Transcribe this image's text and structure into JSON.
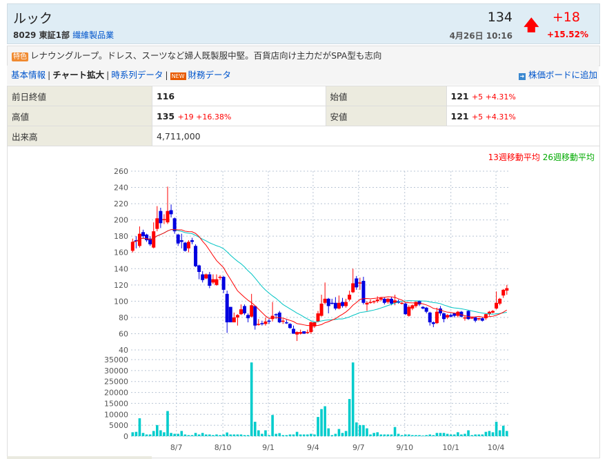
{
  "header": {
    "name": "ルック",
    "code": "8029",
    "market": "東証1部",
    "sector": "繊維製品業",
    "price": "134",
    "datetime": "4月26日 10:16",
    "change": "+18",
    "change_pct": "+15.52%",
    "arrow_icon": "arrow-up-icon"
  },
  "description": {
    "badge": "特色",
    "text": "レナウングループ。ドレス、スーツなど婦人既製服中堅。百貨店向け主力だがSPA型も志向"
  },
  "links": {
    "items": [
      "基本情報",
      "チャート拡大",
      "時系列データ"
    ],
    "new_badge": "NEW",
    "finance": "財務データ",
    "add_board": "株価ボードに追加"
  },
  "quote": {
    "prev_close_label": "前日終値",
    "prev_close": "116",
    "open_label": "始値",
    "open": "121",
    "open_chg": "+5 +4.31%",
    "high_label": "高値",
    "high": "135",
    "high_chg": "+19 +16.38%",
    "low_label": "安値",
    "low": "121",
    "low_chg": "+5 +4.31%",
    "volume_label": "出来高",
    "volume": "4,711,000"
  },
  "chart_data": {
    "type": "candlestick",
    "legend": {
      "ma13": "13週移動平均",
      "ma26": "26週移動平均",
      "placement": "top-right"
    },
    "colors": {
      "up": "#ff0000",
      "down": "#0000e0",
      "ma13": "#ff0000",
      "ma26": "#00c4c4",
      "volume": "#00cccc"
    },
    "price_axis": {
      "ylim": [
        40,
        260
      ],
      "ticks": [
        40,
        60,
        80,
        100,
        120,
        140,
        160,
        180,
        200,
        220,
        240,
        260
      ]
    },
    "volume_axis": {
      "ylim": [
        0,
        35000
      ],
      "ticks": [
        0,
        5000,
        10000,
        15000,
        20000,
        25000,
        30000,
        35000
      ]
    },
    "x_ticks": [
      {
        "label": "8/7",
        "at": 12.5
      },
      {
        "label": "8/10",
        "at": 25.8
      },
      {
        "label": "9/1",
        "at": 38.8
      },
      {
        "label": "9/4",
        "at": 51.6
      },
      {
        "label": "9/7",
        "at": 64.6
      },
      {
        "label": "9/10",
        "at": 77.8
      },
      {
        "label": "10/1",
        "at": 91
      },
      {
        "label": "10/4",
        "at": 103.9
      }
    ],
    "grid": true,
    "ohlc": [
      [
        162,
        177,
        160,
        173
      ],
      [
        175,
        180,
        165,
        174
      ],
      [
        168,
        192,
        166,
        183
      ],
      [
        185,
        188,
        177,
        180
      ],
      [
        182,
        183,
        173,
        175
      ],
      [
        177,
        180,
        168,
        170
      ],
      [
        166,
        197,
        165,
        186
      ],
      [
        189,
        217,
        186,
        202
      ],
      [
        211,
        215,
        190,
        196
      ],
      [
        200,
        207,
        195,
        201
      ],
      [
        197,
        241,
        195,
        211
      ],
      [
        212,
        219,
        203,
        207
      ],
      [
        202,
        203,
        183,
        186
      ],
      [
        182,
        183,
        168,
        171
      ],
      [
        175,
        183,
        165,
        173
      ],
      [
        172,
        173,
        161,
        162
      ],
      [
        165,
        175,
        160,
        173
      ],
      [
        175,
        178,
        170,
        173
      ],
      [
        168,
        170,
        142,
        143
      ],
      [
        144,
        145,
        127,
        136
      ],
      [
        133,
        137,
        123,
        126
      ],
      [
        128,
        134,
        127,
        133
      ],
      [
        133,
        136,
        116,
        119
      ],
      [
        123,
        133,
        121,
        127
      ],
      [
        120,
        133,
        119,
        127
      ],
      [
        130,
        132,
        126,
        130
      ],
      [
        130,
        131,
        110,
        114
      ],
      [
        109,
        113,
        61,
        74
      ],
      [
        93,
        93,
        75,
        74
      ],
      [
        74,
        86,
        74,
        80
      ],
      [
        80,
        84,
        70,
        83
      ],
      [
        84,
        96,
        83,
        90
      ],
      [
        94,
        96,
        83,
        85
      ],
      [
        83,
        85,
        74,
        79
      ],
      [
        81,
        109,
        80,
        95
      ],
      [
        94,
        94,
        65,
        70
      ],
      [
        71,
        78,
        70,
        72
      ],
      [
        73,
        76,
        70,
        72
      ],
      [
        72,
        80,
        70,
        75
      ],
      [
        76,
        78,
        72,
        75
      ],
      [
        78,
        99,
        75,
        82
      ],
      [
        84,
        85,
        78,
        83
      ],
      [
        86,
        88,
        73,
        74
      ],
      [
        75,
        78,
        72,
        76
      ],
      [
        74,
        77,
        72,
        73
      ],
      [
        72,
        73,
        66,
        67
      ],
      [
        66,
        70,
        60,
        60
      ],
      [
        59,
        63,
        51,
        62
      ],
      [
        60,
        65,
        59,
        62
      ],
      [
        63,
        63,
        60,
        60
      ],
      [
        61,
        65,
        60,
        62
      ],
      [
        62,
        75,
        60,
        74
      ],
      [
        69,
        75,
        67,
        74
      ],
      [
        75,
        88,
        74,
        85
      ],
      [
        82,
        108,
        81,
        97
      ],
      [
        98,
        123,
        96,
        103
      ],
      [
        103,
        104,
        85,
        94
      ],
      [
        98,
        103,
        96,
        97
      ],
      [
        98,
        105,
        89,
        91
      ],
      [
        91,
        107,
        90,
        98
      ],
      [
        99,
        104,
        92,
        94
      ],
      [
        94,
        103,
        92,
        99
      ],
      [
        102,
        113,
        100,
        108
      ],
      [
        111,
        140,
        110,
        122
      ],
      [
        128,
        131,
        114,
        117
      ],
      [
        122,
        129,
        114,
        123
      ],
      [
        125,
        130,
        96,
        98
      ],
      [
        96,
        100,
        88,
        98
      ],
      [
        99,
        102,
        97,
        99
      ],
      [
        99,
        101,
        97,
        100
      ],
      [
        100,
        106,
        98,
        102
      ],
      [
        102,
        105,
        100,
        104
      ],
      [
        103,
        105,
        96,
        98
      ],
      [
        99,
        104,
        97,
        103
      ],
      [
        103,
        105,
        95,
        97
      ],
      [
        98,
        108,
        95,
        101
      ],
      [
        100,
        102,
        97,
        98
      ],
      [
        97,
        99,
        96,
        98
      ],
      [
        97,
        98,
        83,
        84
      ],
      [
        82,
        95,
        81,
        93
      ],
      [
        91,
        96,
        89,
        95
      ],
      [
        94,
        100,
        92,
        99
      ],
      [
        100,
        101,
        94,
        96
      ],
      [
        93,
        94,
        90,
        91
      ],
      [
        92,
        93,
        85,
        87
      ],
      [
        86,
        87,
        70,
        74
      ],
      [
        74,
        75,
        68,
        72
      ],
      [
        73,
        92,
        72,
        87
      ],
      [
        91,
        94,
        82,
        85
      ],
      [
        85,
        86,
        74,
        78
      ],
      [
        80,
        84,
        78,
        83
      ],
      [
        83,
        85,
        80,
        81
      ],
      [
        85,
        86,
        80,
        82
      ],
      [
        82,
        88,
        80,
        87
      ],
      [
        87,
        88,
        80,
        81
      ],
      [
        80,
        82,
        76,
        80
      ],
      [
        88,
        89,
        77,
        78
      ],
      [
        80,
        81,
        78,
        80
      ],
      [
        80,
        81,
        74,
        76
      ],
      [
        79,
        80,
        76,
        79
      ],
      [
        79,
        80,
        75,
        76
      ],
      [
        79,
        85,
        77,
        84
      ],
      [
        84,
        88,
        82,
        87
      ],
      [
        86,
        89,
        85,
        88
      ],
      [
        91,
        112,
        90,
        98
      ],
      [
        97,
        104,
        95,
        103
      ],
      [
        107,
        115,
        104,
        114
      ],
      [
        113,
        120,
        108,
        116
      ]
    ],
    "volume": [
      1800,
      2000,
      8200,
      1500,
      800,
      800,
      2400,
      5100,
      2700,
      1800,
      11500,
      1500,
      1100,
      1100,
      2400,
      800,
      500,
      500,
      1500,
      800,
      1500,
      800,
      800,
      500,
      800,
      500,
      800,
      1700,
      800,
      800,
      800,
      800,
      500,
      500,
      33700,
      6600,
      2700,
      1100,
      2700,
      500,
      9700,
      1100,
      1400,
      500,
      500,
      800,
      800,
      2000,
      800,
      800,
      800,
      1100,
      800,
      8800,
      12400,
      13700,
      3600,
      500,
      1100,
      3300,
      1500,
      2400,
      17000,
      33700,
      6300,
      5100,
      5100,
      3600,
      800,
      1500,
      1800,
      800,
      800,
      800,
      800,
      4200,
      1100,
      500,
      800,
      800,
      500,
      500,
      500,
      300,
      500,
      800,
      500,
      1500,
      1500,
      1500,
      1100,
      800,
      800,
      1800,
      800,
      1100,
      2700,
      500,
      800,
      800,
      800,
      2000,
      2400,
      1800,
      6600,
      2700,
      4800,
      2400
    ]
  }
}
